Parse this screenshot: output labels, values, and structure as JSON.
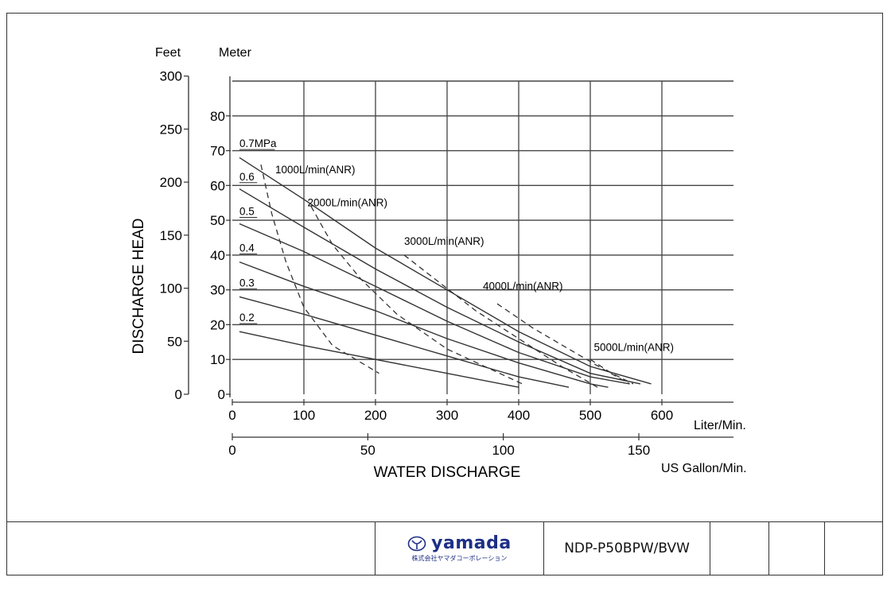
{
  "footer": {
    "logo_text": "yamada",
    "logo_subtext": "株式会社ヤマダコーポレーション",
    "model": "NDP-P50BPW/BVW"
  },
  "chart_data": {
    "type": "line",
    "ylabel": "DISCHARGE HEAD",
    "xlabel": "WATER DISCHARGE",
    "x_unit_primary": "Liter/Min.",
    "x_unit_secondary": "US Gallon/Min.",
    "y_unit_left": "Feet",
    "y_unit_right": "Meter",
    "xlim": [
      0,
      700
    ],
    "ylim": [
      0,
      90
    ],
    "grid": true,
    "x_ticks": [
      "0",
      "100",
      "200",
      "300",
      "400",
      "500",
      "600"
    ],
    "x2_ticks": [
      {
        "label": "0",
        "value": 0
      },
      {
        "label": "50",
        "value": 189.3
      },
      {
        "label": "100",
        "value": 378.5
      },
      {
        "label": "150",
        "value": 567.8
      }
    ],
    "meter_ticks": [
      "0",
      "10",
      "20",
      "30",
      "40",
      "50",
      "60",
      "70",
      "80"
    ],
    "feet_ticks": [
      {
        "label": "0",
        "value": 0
      },
      {
        "label": "50",
        "value": 15.24
      },
      {
        "label": "100",
        "value": 30.48
      },
      {
        "label": "150",
        "value": 45.72
      },
      {
        "label": "200",
        "value": 60.96
      },
      {
        "label": "250",
        "value": 76.2
      },
      {
        "label": "300",
        "value": 91.44
      }
    ],
    "series": [
      {
        "name": "0.7MPa",
        "values": [
          [
            10,
            68
          ],
          [
            100,
            56
          ],
          [
            200,
            42
          ],
          [
            300,
            30
          ],
          [
            400,
            18
          ],
          [
            500,
            8
          ],
          [
            585,
            3
          ]
        ]
      },
      {
        "name": "0.6",
        "values": [
          [
            10,
            59
          ],
          [
            100,
            48
          ],
          [
            200,
            36
          ],
          [
            300,
            25
          ],
          [
            400,
            15
          ],
          [
            500,
            6
          ],
          [
            570,
            3
          ]
        ]
      },
      {
        "name": "0.5",
        "values": [
          [
            10,
            49
          ],
          [
            100,
            41
          ],
          [
            200,
            31
          ],
          [
            300,
            21
          ],
          [
            400,
            12
          ],
          [
            500,
            5
          ],
          [
            555,
            3
          ]
        ]
      },
      {
        "name": "0.4",
        "values": [
          [
            10,
            38
          ],
          [
            100,
            31
          ],
          [
            200,
            24
          ],
          [
            300,
            16
          ],
          [
            400,
            9
          ],
          [
            500,
            3
          ],
          [
            525,
            2
          ]
        ]
      },
      {
        "name": "0.3",
        "values": [
          [
            10,
            28
          ],
          [
            100,
            23
          ],
          [
            200,
            17
          ],
          [
            300,
            11
          ],
          [
            400,
            5
          ],
          [
            470,
            2
          ]
        ]
      },
      {
        "name": "0.2",
        "values": [
          [
            10,
            18
          ],
          [
            100,
            14
          ],
          [
            200,
            10
          ],
          [
            300,
            6
          ],
          [
            400,
            2
          ]
        ]
      }
    ],
    "air_curves": [
      {
        "name": "1000L/min(ANR)",
        "values": [
          [
            40,
            66
          ],
          [
            55,
            52
          ],
          [
            75,
            38
          ],
          [
            100,
            25
          ],
          [
            140,
            14
          ],
          [
            205,
            6
          ]
        ]
      },
      {
        "name": "2000L/min(ANR)",
        "values": [
          [
            110,
            54
          ],
          [
            140,
            43
          ],
          [
            180,
            33
          ],
          [
            230,
            23
          ],
          [
            300,
            13
          ],
          [
            405,
            3
          ]
        ]
      },
      {
        "name": "3000L/min(ANR)",
        "values": [
          [
            240,
            40
          ],
          [
            290,
            32
          ],
          [
            340,
            24
          ],
          [
            400,
            16
          ],
          [
            460,
            8
          ],
          [
            510,
            2
          ]
        ]
      },
      {
        "name": "4000L/min(ANR)",
        "values": [
          [
            370,
            26
          ],
          [
            420,
            19
          ],
          [
            470,
            13
          ],
          [
            520,
            7
          ],
          [
            555,
            3
          ]
        ]
      },
      {
        "name": "5000L/min(ANR)",
        "values": [
          [
            500,
            10
          ],
          [
            530,
            6
          ],
          [
            560,
            3
          ]
        ]
      }
    ],
    "labels": [
      {
        "text": "0.7MPa",
        "x": 10,
        "y": 71
      },
      {
        "text": "0.6",
        "x": 10,
        "y": 61.5
      },
      {
        "text": "0.5",
        "x": 10,
        "y": 51.5
      },
      {
        "text": "0.4",
        "x": 10,
        "y": 41
      },
      {
        "text": "0.3",
        "x": 10,
        "y": 31
      },
      {
        "text": "0.2",
        "x": 10,
        "y": 21
      },
      {
        "text": "1000L/min(ANR)",
        "x": 60,
        "y": 63.5
      },
      {
        "text": "2000L/min(ANR)",
        "x": 105,
        "y": 54
      },
      {
        "text": "3000L/min(ANR)",
        "x": 240,
        "y": 43
      },
      {
        "text": "4000L/min(ANR)",
        "x": 350,
        "y": 30
      },
      {
        "text": "5000L/min(ANR)",
        "x": 505,
        "y": 12.5
      }
    ]
  }
}
